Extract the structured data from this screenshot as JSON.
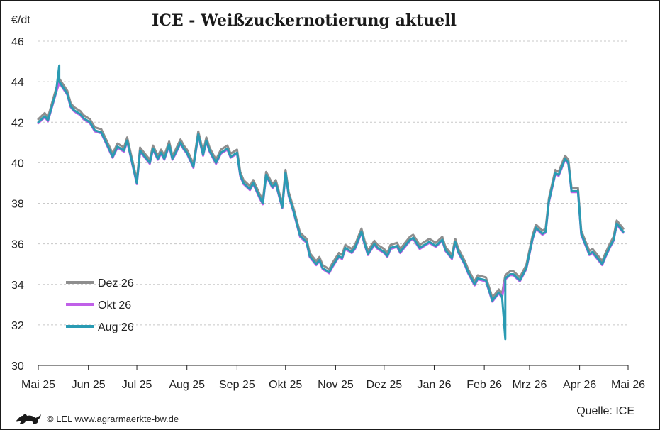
{
  "chart_data": {
    "type": "line",
    "title": "ICE - Weißzuckernotierung aktuell",
    "ylabel": "€/dt",
    "ylim": [
      30,
      46
    ],
    "yticks": [
      "30",
      "32",
      "34",
      "36",
      "38",
      "40",
      "42",
      "44",
      "46"
    ],
    "xlim": [
      "2025-05-01",
      "2026-05-01"
    ],
    "xticks": [
      {
        "date": "2025-05-01",
        "label": "Mai 25"
      },
      {
        "date": "2025-06-01",
        "label": "Jun 25"
      },
      {
        "date": "2025-07-01",
        "label": "Jul 25"
      },
      {
        "date": "2025-08-01",
        "label": "Aug 25"
      },
      {
        "date": "2025-09-01",
        "label": "Sep 25"
      },
      {
        "date": "2025-10-01",
        "label": "Okt 25"
      },
      {
        "date": "2025-11-01",
        "label": "Nov 25"
      },
      {
        "date": "2025-12-01",
        "label": "Dez 25"
      },
      {
        "date": "2026-01-01",
        "label": "Jan 26"
      },
      {
        "date": "2026-02-01",
        "label": "Feb 26"
      },
      {
        "date": "2026-03-01",
        "label": "Mrz 26"
      },
      {
        "date": "2026-04-01",
        "label": "Apr 26"
      },
      {
        "date": "2026-05-01",
        "label": "Mai 26"
      }
    ],
    "grid": "horizontal dashed",
    "legend_position": "bottom-left",
    "base_series": {
      "x": [
        "2025-05-01",
        "2025-05-05",
        "2025-05-07",
        "2025-05-12",
        "2025-05-14",
        "2025-05-19",
        "2025-05-21",
        "2025-05-23",
        "2025-05-27",
        "2025-05-29",
        "2025-06-02",
        "2025-06-05",
        "2025-06-09",
        "2025-06-12",
        "2025-06-16",
        "2025-06-19",
        "2025-06-23",
        "2025-06-25",
        "2025-06-27",
        "2025-07-01",
        "2025-07-03",
        "2025-07-07",
        "2025-07-09",
        "2025-07-11",
        "2025-07-14",
        "2025-07-16",
        "2025-07-18",
        "2025-07-21",
        "2025-07-23",
        "2025-07-25",
        "2025-07-28",
        "2025-07-30",
        "2025-08-01",
        "2025-08-05",
        "2025-08-08",
        "2025-08-11",
        "2025-08-13",
        "2025-08-15",
        "2025-08-19",
        "2025-08-22",
        "2025-08-26",
        "2025-08-28",
        "2025-09-01",
        "2025-09-03",
        "2025-09-05",
        "2025-09-09",
        "2025-09-11",
        "2025-09-15",
        "2025-09-17",
        "2025-09-19",
        "2025-09-23",
        "2025-09-25",
        "2025-09-29",
        "2025-10-01",
        "2025-10-03",
        "2025-10-06",
        "2025-10-08",
        "2025-10-10",
        "2025-10-14",
        "2025-10-16",
        "2025-10-20",
        "2025-10-22",
        "2025-10-24",
        "2025-10-28",
        "2025-10-30",
        "2025-11-03",
        "2025-11-05",
        "2025-11-07",
        "2025-11-11",
        "2025-11-13",
        "2025-11-17",
        "2025-11-19",
        "2025-11-21",
        "2025-11-25",
        "2025-11-27",
        "2025-12-01",
        "2025-12-03",
        "2025-12-05",
        "2025-12-09",
        "2025-12-11",
        "2025-12-15",
        "2025-12-17",
        "2025-12-19",
        "2025-12-23",
        "2025-12-29",
        "2026-01-02",
        "2026-01-06",
        "2026-01-08",
        "2026-01-12",
        "2026-01-14",
        "2026-01-16",
        "2026-01-20",
        "2026-01-22",
        "2026-01-26",
        "2026-01-28",
        "2026-02-02",
        "2026-02-04",
        "2026-02-06",
        "2026-02-10",
        "2026-02-12",
        "2026-02-14",
        "2026-02-17",
        "2026-02-19",
        "2026-02-23",
        "2026-02-25",
        "2026-02-27",
        "2026-03-03",
        "2026-03-05",
        "2026-03-09",
        "2026-03-11",
        "2026-03-13",
        "2026-03-17",
        "2026-03-19",
        "2026-03-23",
        "2026-03-25",
        "2026-03-27",
        "2026-03-31",
        "2026-04-02",
        "2026-04-07",
        "2026-04-09",
        "2026-04-13",
        "2026-04-15",
        "2026-04-17",
        "2026-04-20",
        "2026-04-22",
        "2026-04-24",
        "2026-04-28"
      ],
      "y": [
        42.0,
        42.3,
        42.1,
        43.5,
        44.0,
        43.4,
        42.8,
        42.6,
        42.4,
        42.2,
        42.0,
        41.6,
        41.5,
        41.0,
        40.3,
        40.8,
        40.6,
        41.1,
        40.4,
        39.0,
        40.6,
        40.2,
        40.0,
        40.7,
        40.2,
        40.5,
        40.2,
        40.9,
        40.2,
        40.5,
        41.0,
        40.7,
        40.5,
        39.8,
        41.4,
        40.4,
        41.1,
        40.6,
        40.0,
        40.5,
        40.7,
        40.3,
        40.5,
        39.4,
        39.0,
        38.7,
        39.0,
        38.3,
        38.0,
        39.4,
        38.8,
        39.0,
        37.8,
        39.5,
        38.4,
        37.6,
        37.0,
        36.4,
        36.1,
        35.4,
        35.0,
        35.2,
        34.8,
        34.6,
        34.9,
        35.4,
        35.3,
        35.8,
        35.6,
        35.8,
        36.6,
        36.0,
        35.5,
        36.0,
        35.8,
        35.6,
        35.4,
        35.8,
        35.9,
        35.6,
        36.0,
        36.2,
        36.3,
        35.8,
        36.1,
        35.9,
        36.2,
        35.7,
        35.3,
        36.1,
        35.6,
        35.0,
        34.6,
        34.0,
        34.3,
        34.2,
        33.7,
        33.2,
        33.6,
        33.4,
        34.3,
        34.5,
        34.5,
        34.2,
        34.5,
        34.8,
        36.3,
        36.8,
        36.5,
        36.6,
        38.1,
        39.5,
        39.4,
        40.2,
        40.0,
        38.6,
        38.6,
        36.5,
        35.5,
        35.6,
        35.2,
        35.0,
        35.4,
        35.9,
        36.2,
        37.0,
        36.6
      ]
    },
    "series": [
      {
        "name": "Dez 26",
        "color": "#8e8e8e",
        "offset": 0.15
      },
      {
        "name": "Okt 26",
        "color": "#c060e8",
        "offset": -0.05
      },
      {
        "name": "Aug 26",
        "color": "#2a9bb3",
        "offset": 0.0
      }
    ],
    "annotations": [
      {
        "x": "2025-05-14",
        "y": 44.8,
        "series": "Aug 26",
        "note": "peak spike"
      },
      {
        "x": "2026-02-14",
        "y": 31.3,
        "series": "Aug 26",
        "note": "low spike"
      }
    ]
  },
  "footer": {
    "credit": "© LEL www.agrarmaerkte-bw.de",
    "source": "Quelle: ICE"
  },
  "colors": {
    "grid": "#c8c8c8",
    "axis": "#222222",
    "logo": "#1a1a1a"
  }
}
